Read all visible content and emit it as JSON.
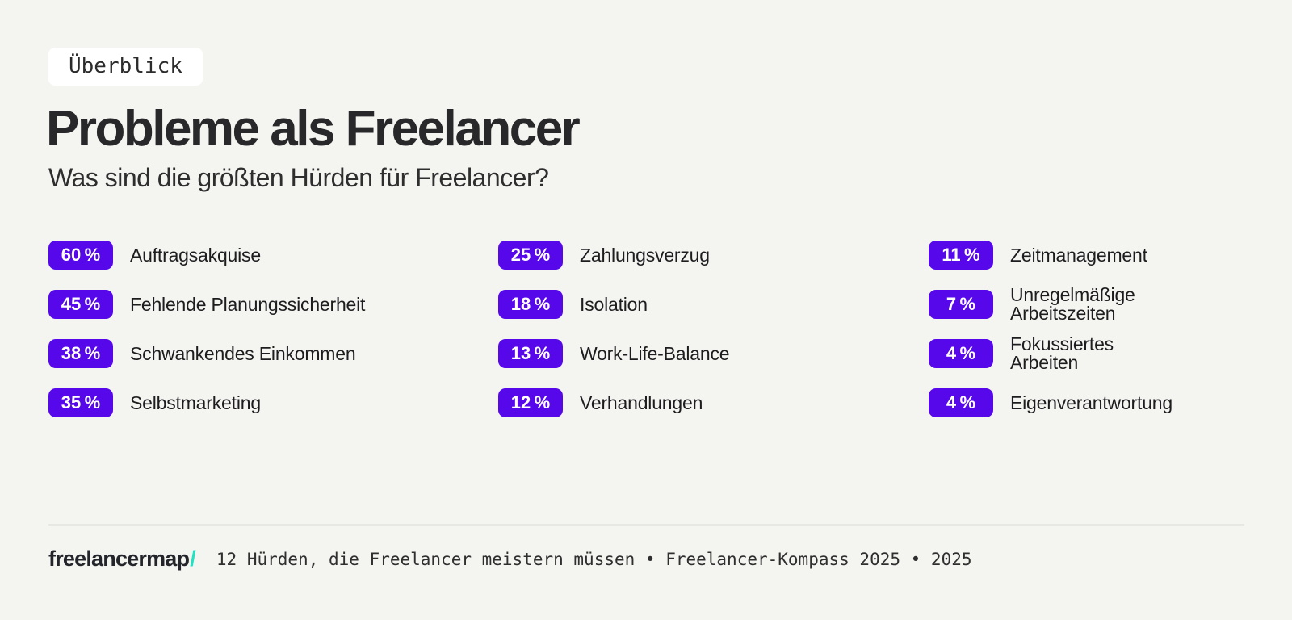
{
  "page": {
    "background_color": "#f4f4f1",
    "accent_color": "#5708eb",
    "teal_color": "#21e2c2"
  },
  "header": {
    "tag": "Überblick",
    "title": "Probleme als Freelancer",
    "subtitle": "Was sind die größten Hürden für Freelancer?"
  },
  "stats": {
    "columns": [
      {
        "items": [
          {
            "value": "60 %",
            "label": "Auftragsakquise"
          },
          {
            "value": "45 %",
            "label": "Fehlende Planungssicherheit"
          },
          {
            "value": "38 %",
            "label": "Schwankendes Einkommen"
          },
          {
            "value": "35 %",
            "label": "Selbstmarketing"
          }
        ]
      },
      {
        "items": [
          {
            "value": "25 %",
            "label": "Zahlungsverzug"
          },
          {
            "value": "18 %",
            "label": "Isolation"
          },
          {
            "value": "13 %",
            "label": "Work-Life-Balance"
          },
          {
            "value": "12 %",
            "label": "Verhandlungen"
          }
        ]
      },
      {
        "items": [
          {
            "value": "11 %",
            "label": "Zeitmanagement"
          },
          {
            "value": "7 %",
            "label": "Unregelmäßige\nArbeitszeiten"
          },
          {
            "value": "4 %",
            "label": "Fokussiertes\nArbeiten"
          },
          {
            "value": "4 %",
            "label": "Eigenverantwortung"
          }
        ]
      }
    ]
  },
  "footer": {
    "logo_text": "freelancermap",
    "logo_slash": "/",
    "caption": "12 Hürden, die Freelancer meistern müssen • Freelancer-Kompass 2025 • 2025"
  },
  "chart_data": {
    "type": "table",
    "title": "Probleme als Freelancer",
    "subtitle": "Was sind die größten Hürden für Freelancer?",
    "unit": "%",
    "categories": [
      "Auftragsakquise",
      "Fehlende Planungssicherheit",
      "Schwankendes Einkommen",
      "Selbstmarketing",
      "Zahlungsverzug",
      "Isolation",
      "Work-Life-Balance",
      "Verhandlungen",
      "Zeitmanagement",
      "Unregelmäßige Arbeitszeiten",
      "Fokussiertes Arbeiten",
      "Eigenverantwortung"
    ],
    "values": [
      60,
      45,
      38,
      35,
      25,
      18,
      13,
      12,
      11,
      7,
      4,
      4
    ],
    "layout": "three-column badge list",
    "legend": false,
    "grid": false
  }
}
